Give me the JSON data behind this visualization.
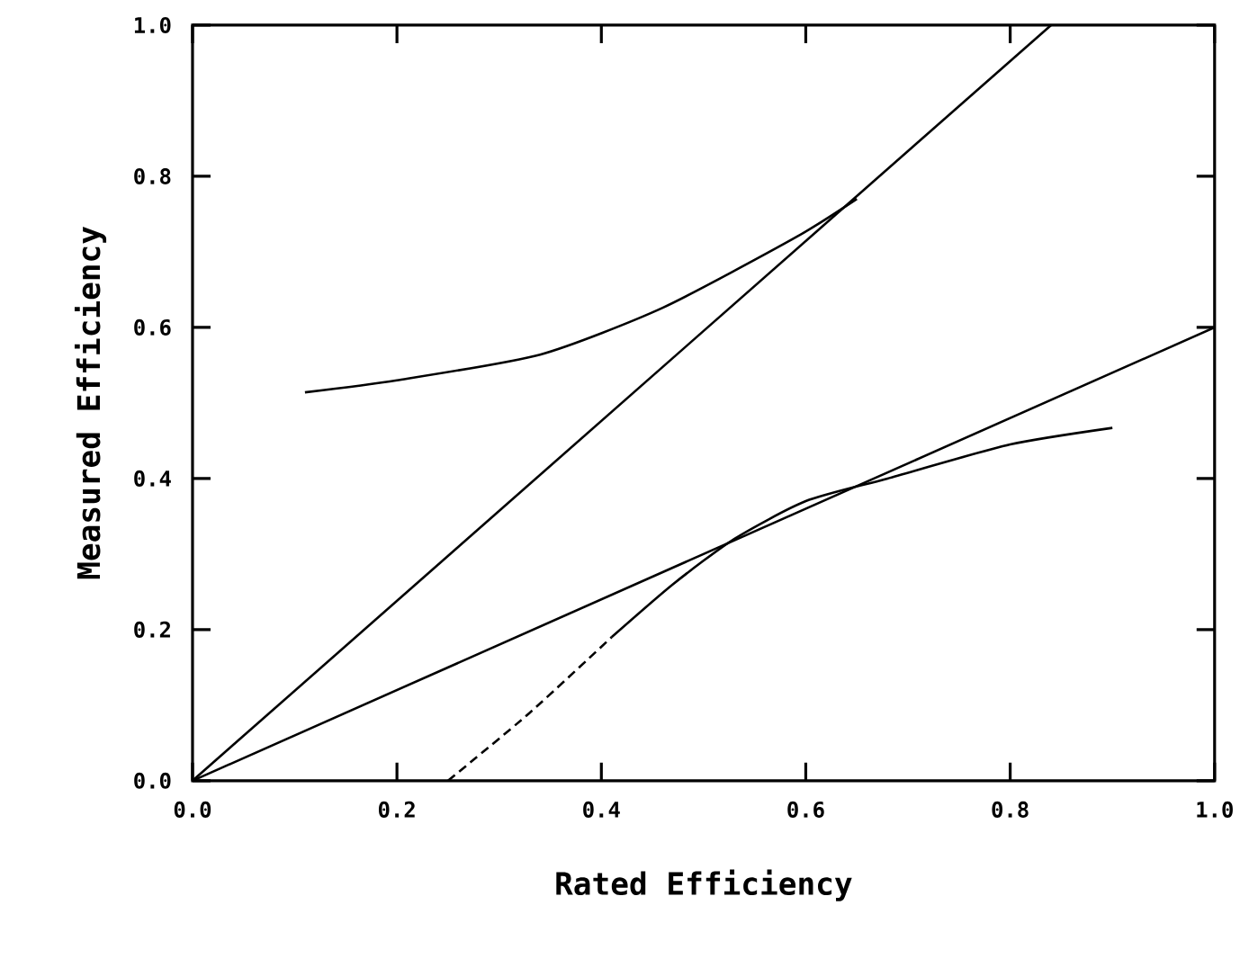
{
  "chart_data": {
    "type": "line",
    "xlabel": "Rated Efficiency",
    "ylabel": "Measured Efficiency",
    "xlim": [
      0,
      1
    ],
    "ylim": [
      0,
      1
    ],
    "xticks": [
      {
        "value": 0,
        "label": "0.0"
      },
      0.2,
      0.4,
      0.6,
      0.8,
      {
        "value": 1,
        "label": "1.0"
      }
    ],
    "yticks": [
      {
        "value": 0,
        "label": "0.0"
      },
      0.2,
      0.4,
      0.6,
      0.8,
      {
        "value": 1,
        "label": "1.0"
      }
    ],
    "grid": false,
    "series": [
      {
        "color": "#000000",
        "x": [
          0,
          0.84
        ],
        "values": [
          0,
          1.0
        ]
      },
      {
        "color": "#000000",
        "x": [
          0,
          1.0
        ],
        "values": [
          0,
          0.6
        ]
      },
      {
        "color": "#000000",
        "x": [
          0.11,
          0.2,
          0.34,
          0.46,
          0.59,
          0.65
        ],
        "values": [
          0.514,
          0.53,
          0.564,
          0.626,
          0.719,
          0.77
        ]
      },
      {
        "color": "#000000",
        "line_style": "dashed",
        "x": [
          0.25,
          0.33,
          0.41
        ],
        "values": [
          0,
          0.09,
          0.19
        ]
      },
      {
        "color": "#000000",
        "x": [
          0.41,
          0.47,
          0.53,
          0.6,
          0.68,
          0.8,
          0.9
        ],
        "values": [
          0.19,
          0.26,
          0.32,
          0.37,
          0.4,
          0.445,
          0.467
        ]
      }
    ]
  }
}
